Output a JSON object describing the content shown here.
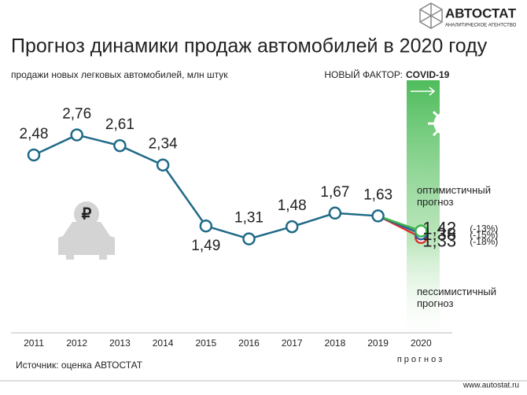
{
  "brand": {
    "name": "АВТОСТАТ",
    "tagline": "АНАЛИТИЧЕСКОЕ АГЕНТСТВО"
  },
  "chart_data": {
    "type": "line",
    "title": "Прогноз динамики продаж автомобилей в 2020 году",
    "subtitle": "продажи новых легковых автомобилей, млн штук",
    "factor_label": "НОВЫЙ ФАКТОР:",
    "factor_name": "COVID-19",
    "forecast_label": "прогноз",
    "categories": [
      "2011",
      "2012",
      "2013",
      "2014",
      "2015",
      "2016",
      "2017",
      "2018",
      "2019",
      "2020"
    ],
    "ylim": [
      0,
      3.5
    ],
    "series": [
      {
        "color": "#1f6a87",
        "values": [
          2.48,
          2.76,
          2.61,
          2.34,
          1.49,
          1.31,
          1.48,
          1.67,
          1.63,
          null
        ],
        "value_labels": [
          "2,48",
          "2,76",
          "2,61",
          "2,34",
          "1,49",
          "1,31",
          "1,48",
          "1,67",
          "1,63",
          null
        ]
      },
      {
        "name": "оптимистичный прогноз",
        "color": "#3bb54a",
        "values": [
          null,
          null,
          null,
          null,
          null,
          null,
          null,
          null,
          1.63,
          1.42
        ],
        "value_labels": [
          null,
          null,
          null,
          null,
          null,
          null,
          null,
          null,
          null,
          "1,42"
        ],
        "change_label": "(-13%)"
      },
      {
        "color": "#2a5d9c",
        "values": [
          null,
          null,
          null,
          null,
          null,
          null,
          null,
          null,
          1.63,
          1.38
        ],
        "value_labels": [
          null,
          null,
          null,
          null,
          null,
          null,
          null,
          null,
          null,
          "1,38"
        ],
        "change_label": "(-15%)"
      },
      {
        "name": "пессимистичный прогноз",
        "color": "#d7352b",
        "values": [
          null,
          null,
          null,
          null,
          null,
          null,
          null,
          null,
          1.63,
          1.33
        ],
        "value_labels": [
          null,
          null,
          null,
          null,
          null,
          null,
          null,
          null,
          null,
          "1,33"
        ],
        "change_label": "(-18%)"
      }
    ],
    "source": "Источник: оценка АВТОСТАТ",
    "website": "www.autostat.ru"
  }
}
